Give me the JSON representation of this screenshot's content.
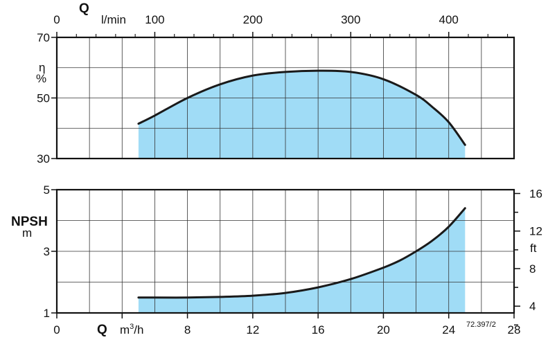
{
  "chart_data": [
    {
      "type": "area",
      "name": "efficiency",
      "top_axis": {
        "symbol": "Q",
        "unit": "l/min",
        "ticks": [
          0,
          100,
          200,
          300,
          400
        ],
        "tick_labels": [
          "0",
          "100",
          "200",
          "300",
          "400"
        ],
        "m3h_per_unit": 0.06
      },
      "y_axis": {
        "symbol": "η",
        "unit": "%",
        "range": [
          30,
          70
        ],
        "ticks": [
          30,
          50,
          70
        ],
        "tick_labels": [
          "30",
          "50",
          "70"
        ]
      },
      "x_range": [
        0,
        28
      ],
      "grid": true,
      "fill_color": "#a0dcf6",
      "line_color": "#1a1a1a",
      "series": [
        {
          "x": [
            5,
            6,
            8,
            10,
            12,
            14,
            16,
            18,
            20,
            22,
            23,
            24,
            25
          ],
          "y": [
            41.5,
            44.2,
            50.0,
            54.5,
            57.4,
            58.6,
            59.0,
            58.6,
            56.2,
            51.0,
            47.0,
            42.0,
            34.5
          ]
        }
      ]
    },
    {
      "type": "area",
      "name": "npsh",
      "x_axis": {
        "symbol": "Q",
        "unit": "m³/h",
        "unit_base": "m",
        "unit_sup": "3",
        "unit_tail": "/h",
        "ticks": [
          0,
          4,
          8,
          12,
          16,
          20,
          24,
          28
        ],
        "tick_labels": [
          "0",
          "",
          "8",
          "12",
          "16",
          "20",
          "24",
          "28"
        ]
      },
      "y_axis": {
        "label": "NPSH",
        "unit": "m",
        "range": [
          1,
          5
        ],
        "ticks": [
          1,
          3,
          5
        ],
        "tick_labels": [
          "1",
          "3",
          "5"
        ]
      },
      "y2_axis": {
        "unit": "ft",
        "ticks": [
          4,
          8,
          12,
          16
        ],
        "tick_labels": [
          "4",
          "8",
          "12",
          "16"
        ],
        "m_per_unit": 0.3048
      },
      "x_range": [
        0,
        28
      ],
      "grid": true,
      "fill_color": "#a0dcf6",
      "line_color": "#1a1a1a",
      "series": [
        {
          "x": [
            5,
            6,
            8,
            10,
            12,
            14,
            16,
            18,
            20,
            21,
            22,
            23,
            24,
            25
          ],
          "y": [
            1.5,
            1.5,
            1.5,
            1.52,
            1.56,
            1.65,
            1.83,
            2.1,
            2.47,
            2.7,
            3.0,
            3.35,
            3.8,
            4.4
          ]
        }
      ]
    }
  ],
  "reference_code": "72.397/2"
}
